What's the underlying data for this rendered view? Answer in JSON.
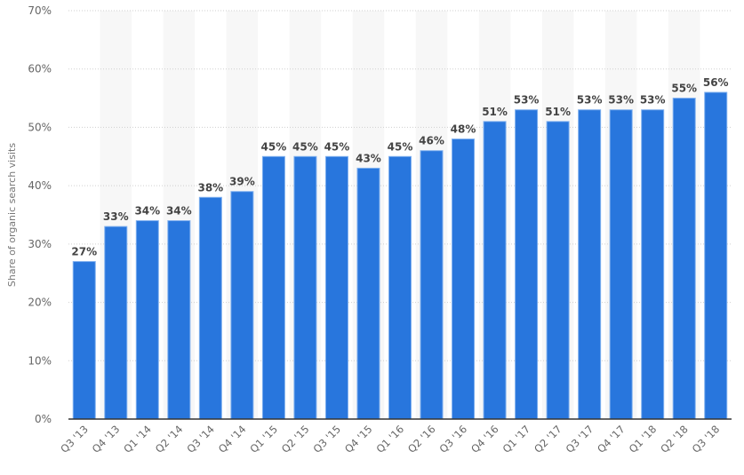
{
  "chart_data": {
    "type": "bar",
    "title": "",
    "xlabel": "",
    "ylabel": "Share of organic search visits",
    "ylim": [
      0,
      70
    ],
    "yticks": [
      "0%",
      "10%",
      "20%",
      "30%",
      "40%",
      "50%",
      "60%",
      "70%"
    ],
    "ytick_values": [
      0,
      10,
      20,
      30,
      40,
      50,
      60,
      70
    ],
    "grid": true,
    "legend": null,
    "categories": [
      "Q3 '13",
      "Q4 '13",
      "Q1 '14",
      "Q2 '14",
      "Q3 '14",
      "Q4 '14",
      "Q1 '15",
      "Q2 '15",
      "Q3 '15",
      "Q4 '15",
      "Q1 '16",
      "Q2 '16",
      "Q3 '16",
      "Q4 '16",
      "Q1 '17",
      "Q2 '17",
      "Q3 '17",
      "Q4 '17",
      "Q1 '18",
      "Q2 '18",
      "Q3 '18"
    ],
    "values": [
      27,
      33,
      34,
      34,
      38,
      39,
      45,
      45,
      45,
      43,
      45,
      46,
      48,
      51,
      53,
      51,
      53,
      53,
      53,
      55,
      56
    ],
    "value_labels": [
      "27%",
      "33%",
      "34%",
      "34%",
      "38%",
      "39%",
      "45%",
      "45%",
      "45%",
      "43%",
      "45%",
      "46%",
      "48%",
      "51%",
      "53%",
      "51%",
      "53%",
      "53%",
      "53%",
      "55%",
      "56%"
    ],
    "colors": {
      "bar": "#2876dd",
      "band": "#f7f7f7",
      "axis": "#333333",
      "grid": "#cfcfcf"
    }
  }
}
